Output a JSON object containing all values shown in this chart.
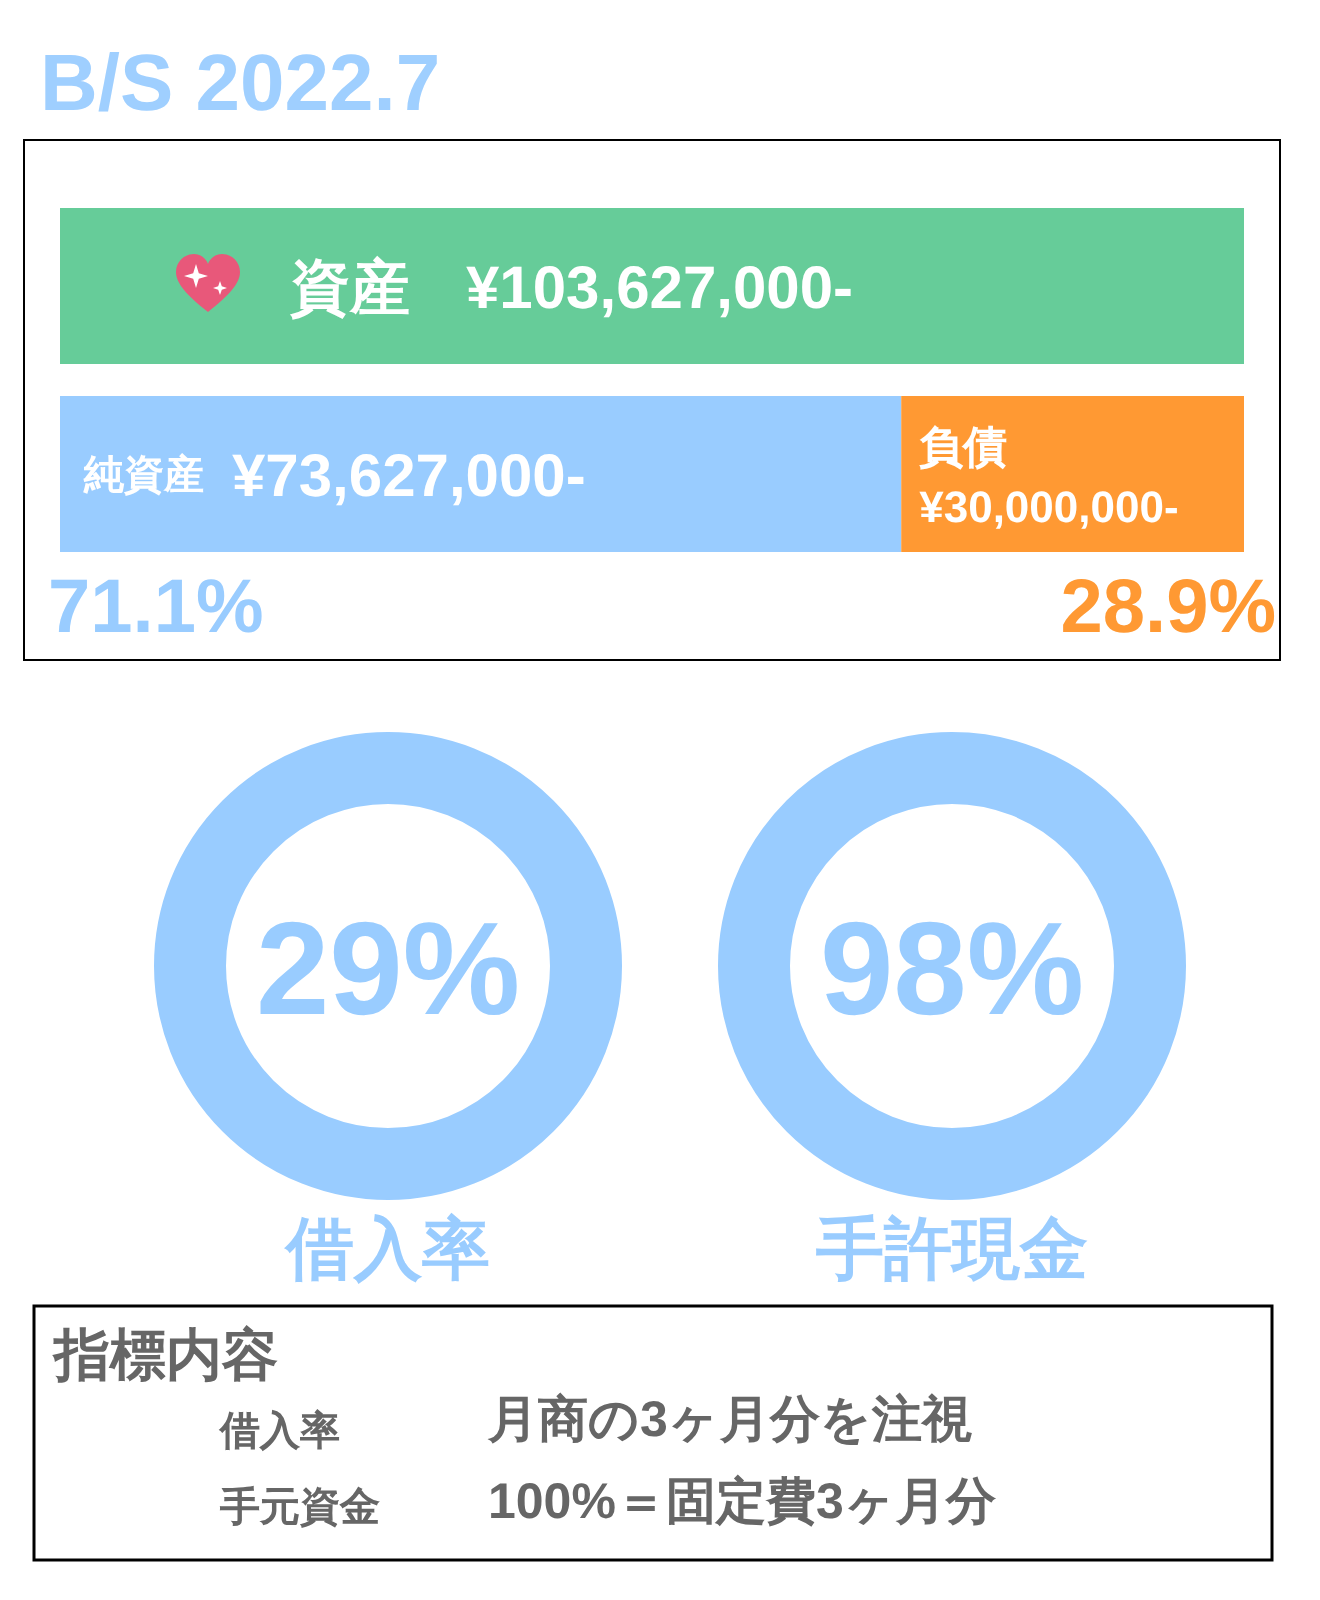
{
  "chart_data": [
    {
      "type": "bar",
      "title": "B/S 2022.7",
      "orientation": "horizontal",
      "stacked": true,
      "categories": [
        null,
        null
      ],
      "series": [
        {
          "name": "資産",
          "color": "#66cc99",
          "values": [
            103627000,
            null
          ],
          "value_labels": [
            "¥103,627,000-",
            null
          ]
        },
        {
          "name": "純資産",
          "color": "#99ccff",
          "values": [
            null,
            73627000
          ],
          "value_labels": [
            null,
            "¥73,627,000-"
          ]
        },
        {
          "name": "負債",
          "color": "#ff9933",
          "values": [
            null,
            30000000
          ],
          "value_labels": [
            null,
            "¥30,000,000-"
          ]
        }
      ],
      "annotations": [
        "71.1%",
        "28.9%"
      ]
    },
    {
      "type": "other",
      "categories": [
        "借入率",
        "手許現金"
      ],
      "value_labels": [
        "29%",
        "98%"
      ],
      "colors": [
        "#99ccff",
        "#99ccff"
      ]
    },
    {
      "type": "other",
      "title": "指標内容",
      "annotations": [
        "借入率",
        "月商の3ヶ月分を注視",
        "手元資金",
        "100%＝固定費3ヶ月分"
      ]
    }
  ]
}
